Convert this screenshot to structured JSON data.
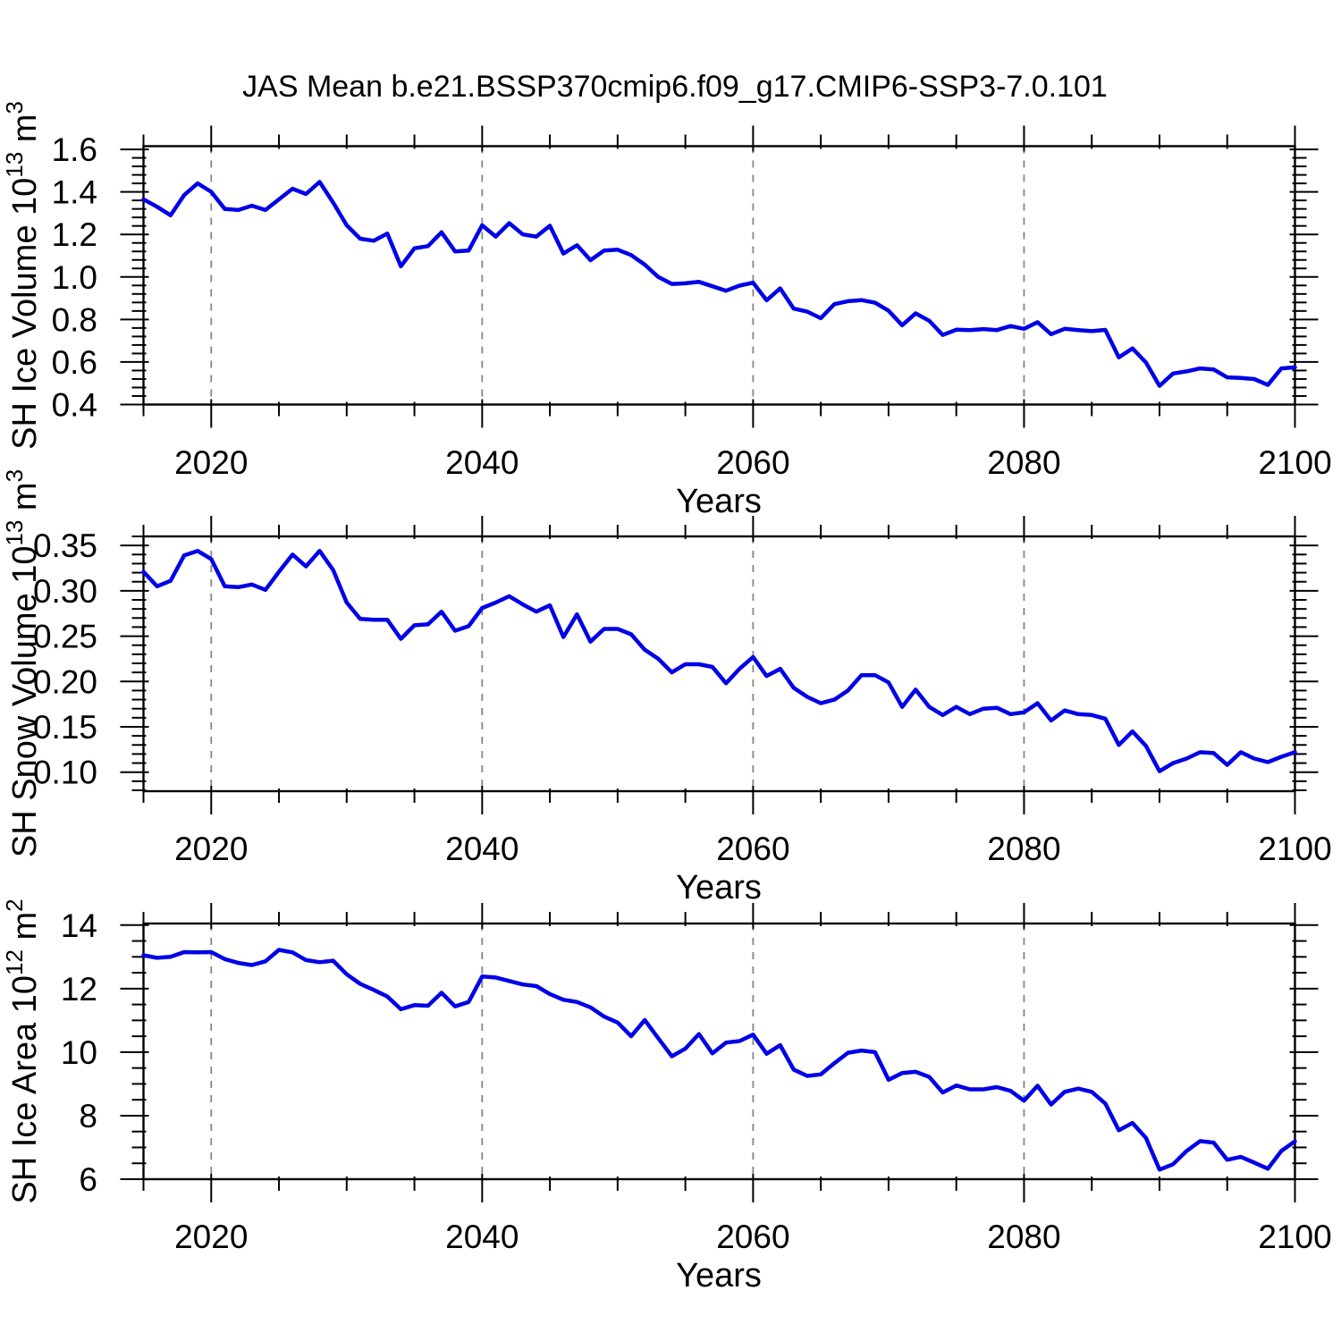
{
  "title": "JAS Mean b.e21.BSSP370cmip6.f09_g17.CMIP6-SSP3-7.0.101",
  "colors": {
    "line": "#0000e6",
    "grid": "#858585",
    "axis": "#000000",
    "text": "#000000"
  },
  "chart_data": [
    {
      "type": "line",
      "ylabel_main": "SH Ice Volume 10",
      "ylabel_exp": "13",
      "ylabel_unit": " m",
      "ylabel_unit_exp": "3",
      "xlabel": "Years",
      "x_start": 2015,
      "x_end": 2100,
      "values": [
        1.365,
        1.33,
        1.29,
        1.385,
        1.44,
        1.4,
        1.32,
        1.315,
        1.335,
        1.315,
        1.365,
        1.415,
        1.39,
        1.447,
        1.35,
        1.243,
        1.18,
        1.17,
        1.204,
        1.05,
        1.135,
        1.145,
        1.21,
        1.12,
        1.124,
        1.243,
        1.19,
        1.253,
        1.2,
        1.19,
        1.241,
        1.11,
        1.149,
        1.079,
        1.124,
        1.128,
        1.103,
        1.058,
        1.0,
        0.967,
        0.97,
        0.977,
        0.956,
        0.935,
        0.959,
        0.973,
        0.89,
        0.946,
        0.851,
        0.837,
        0.806,
        0.872,
        0.886,
        0.891,
        0.879,
        0.841,
        0.773,
        0.829,
        0.794,
        0.727,
        0.752,
        0.75,
        0.755,
        0.75,
        0.769,
        0.756,
        0.787,
        0.731,
        0.756,
        0.75,
        0.745,
        0.751,
        0.622,
        0.664,
        0.598,
        0.488,
        0.546,
        0.556,
        0.57,
        0.565,
        0.528,
        0.525,
        0.52,
        0.492,
        0.57,
        0.575
      ],
      "xlim": [
        2015,
        2100
      ],
      "ylim": [
        0.4,
        1.615
      ],
      "xticks": [
        2020,
        2040,
        2060,
        2080,
        2100
      ],
      "xtick_labels": [
        "2020",
        "2040",
        "2060",
        "2080",
        "2100"
      ],
      "xminor_step": 5,
      "grid_x": [
        2020,
        2040,
        2060,
        2080
      ],
      "yticks": [
        0.4,
        0.6,
        0.8,
        1.0,
        1.2,
        1.4,
        1.6
      ],
      "ytick_labels": [
        "0.4",
        "0.6",
        "0.8",
        "1.0",
        "1.2",
        "1.4",
        "1.6"
      ],
      "yminor_step": 0.04,
      "legend": "none",
      "grid": "vertical-dashed"
    },
    {
      "type": "line",
      "ylabel_main": "SH Snow Volume 10",
      "ylabel_exp": "13",
      "ylabel_unit": " m",
      "ylabel_unit_exp": "3",
      "xlabel": "Years",
      "x_start": 2015,
      "x_end": 2100,
      "values": [
        0.321,
        0.305,
        0.311,
        0.339,
        0.344,
        0.335,
        0.305,
        0.304,
        0.307,
        0.301,
        0.321,
        0.34,
        0.327,
        0.344,
        0.323,
        0.287,
        0.269,
        0.268,
        0.268,
        0.247,
        0.262,
        0.263,
        0.277,
        0.256,
        0.261,
        0.281,
        0.287,
        0.294,
        0.285,
        0.277,
        0.284,
        0.249,
        0.274,
        0.244,
        0.258,
        0.258,
        0.252,
        0.235,
        0.225,
        0.21,
        0.219,
        0.219,
        0.216,
        0.198,
        0.214,
        0.227,
        0.206,
        0.214,
        0.193,
        0.183,
        0.176,
        0.18,
        0.19,
        0.207,
        0.207,
        0.199,
        0.172,
        0.191,
        0.172,
        0.163,
        0.172,
        0.164,
        0.17,
        0.171,
        0.164,
        0.166,
        0.176,
        0.157,
        0.168,
        0.164,
        0.163,
        0.159,
        0.13,
        0.145,
        0.129,
        0.101,
        0.11,
        0.115,
        0.122,
        0.121,
        0.108,
        0.122,
        0.115,
        0.111,
        0.117,
        0.122
      ],
      "xlim": [
        2015,
        2100
      ],
      "ylim": [
        0.079,
        0.36
      ],
      "xticks": [
        2020,
        2040,
        2060,
        2080,
        2100
      ],
      "xtick_labels": [
        "2020",
        "2040",
        "2060",
        "2080",
        "2100"
      ],
      "xminor_step": 5,
      "grid_x": [
        2020,
        2040,
        2060,
        2080
      ],
      "yticks": [
        0.1,
        0.15,
        0.2,
        0.25,
        0.3,
        0.35
      ],
      "ytick_labels": [
        "0.10",
        "0.15",
        "0.20",
        "0.25",
        "0.30",
        "0.35"
      ],
      "yminor_step": 0.01,
      "legend": "none",
      "grid": "vertical-dashed"
    },
    {
      "type": "line",
      "ylabel_main": "SH Ice Area 10",
      "ylabel_exp": "12",
      "ylabel_unit": " m",
      "ylabel_unit_exp": "2",
      "xlabel": "Years",
      "x_start": 2015,
      "x_end": 2100,
      "values": [
        13.05,
        12.97,
        13.0,
        13.15,
        13.14,
        13.15,
        12.93,
        12.81,
        12.74,
        12.86,
        13.22,
        13.14,
        12.9,
        12.83,
        12.88,
        12.45,
        12.15,
        11.96,
        11.75,
        11.35,
        11.48,
        11.46,
        11.87,
        11.44,
        11.58,
        12.38,
        12.35,
        12.24,
        12.13,
        12.08,
        11.83,
        11.65,
        11.58,
        11.41,
        11.12,
        10.93,
        10.5,
        11.01,
        10.44,
        9.87,
        10.11,
        10.57,
        9.96,
        10.3,
        10.35,
        10.55,
        9.95,
        10.22,
        9.45,
        9.25,
        9.3,
        9.65,
        9.98,
        10.05,
        10.0,
        9.13,
        9.34,
        9.38,
        9.22,
        8.73,
        8.95,
        8.83,
        8.83,
        8.9,
        8.78,
        8.47,
        8.94,
        8.35,
        8.75,
        8.85,
        8.75,
        8.38,
        7.54,
        7.77,
        7.3,
        6.3,
        6.47,
        6.89,
        7.2,
        7.15,
        6.61,
        6.7,
        6.52,
        6.33,
        6.89,
        7.19
      ],
      "xlim": [
        2015,
        2100
      ],
      "ylim": [
        6.0,
        14.05
      ],
      "xticks": [
        2020,
        2040,
        2060,
        2080,
        2100
      ],
      "xtick_labels": [
        "2020",
        "2040",
        "2060",
        "2080",
        "2100"
      ],
      "xminor_step": 5,
      "grid_x": [
        2020,
        2040,
        2060,
        2080
      ],
      "yticks": [
        6,
        8,
        10,
        12,
        14
      ],
      "ytick_labels": [
        "6",
        "8",
        "10",
        "12",
        "14"
      ],
      "yminor_step": 0.5,
      "legend": "none",
      "grid": "vertical-dashed"
    }
  ]
}
